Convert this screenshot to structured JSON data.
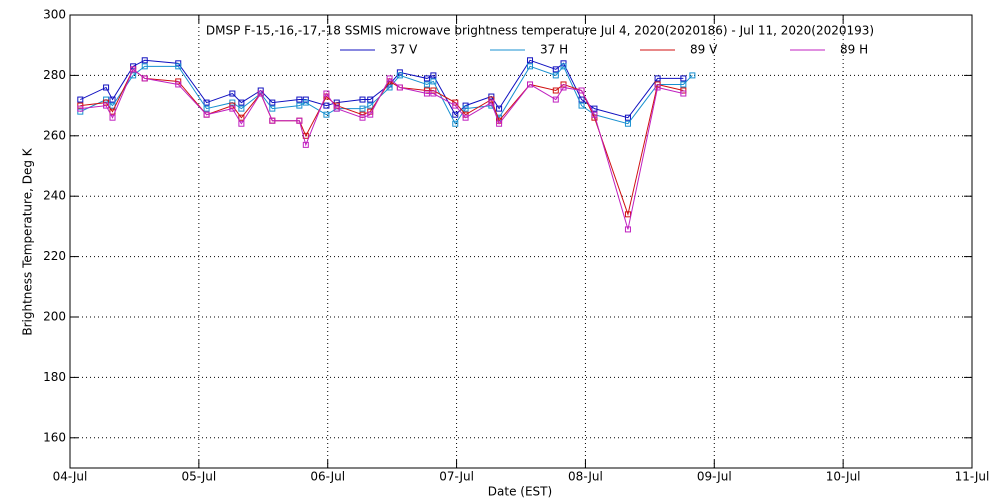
{
  "chart_data": {
    "type": "line",
    "title": "DMSP F-15,-16,-17,-18 SSMIS microwave brightness temperature Jul  4, 2020(2020186) - Jul 11, 2020(2020193)",
    "x_label": "Date (EST)",
    "y_label": "Brightness Temperature, Deg K",
    "x": [
      0.08,
      0.28,
      0.33,
      0.49,
      0.58,
      0.84,
      1.06,
      1.26,
      1.33,
      1.48,
      1.57,
      1.78,
      1.83,
      1.99,
      2.07,
      2.27,
      2.33,
      2.48,
      2.56,
      2.77,
      2.82,
      2.99,
      3.07,
      3.27,
      3.33,
      3.57,
      3.77,
      3.83,
      3.97,
      4.07,
      4.33,
      4.56,
      4.76,
      4.83
    ],
    "series": [
      {
        "name": "37 V",
        "color": "#1010c0",
        "values": [
          272,
          276,
          272,
          283,
          285,
          284,
          271,
          274,
          271,
          275,
          271,
          272,
          272,
          270,
          271,
          272,
          272,
          277,
          281,
          279,
          280,
          267,
          270,
          273,
          269,
          285,
          282,
          284,
          272,
          269,
          266,
          279,
          279,
          null
        ]
      },
      {
        "name": "37 H",
        "color": "#1890d0",
        "values": [
          268,
          272,
          270,
          280,
          283,
          283,
          269,
          271,
          269,
          274,
          269,
          270,
          271,
          267,
          269,
          269,
          270,
          276,
          280,
          277,
          278,
          264,
          269,
          270,
          266,
          283,
          280,
          283,
          270,
          267,
          264,
          277,
          277,
          280
        ]
      },
      {
        "name": "89 V",
        "color": "#d01010",
        "values": [
          270,
          271,
          268,
          282,
          279,
          278,
          267,
          270,
          266,
          274,
          265,
          265,
          260,
          273,
          270,
          267,
          268,
          278,
          276,
          275,
          275,
          271,
          267,
          272,
          265,
          277,
          275,
          277,
          275,
          266,
          234,
          277,
          275,
          null
        ]
      },
      {
        "name": "89 H",
        "color": "#c020c0",
        "values": [
          269,
          270,
          266,
          282,
          279,
          277,
          267,
          269,
          264,
          274,
          265,
          265,
          257,
          274,
          269,
          266,
          267,
          279,
          276,
          274,
          274,
          270,
          266,
          271,
          264,
          277,
          272,
          276,
          275,
          267,
          229,
          276,
          274,
          null
        ]
      }
    ],
    "xlim": [
      0,
      7
    ],
    "xticks": [
      {
        "value": 0,
        "label": "04-Jul"
      },
      {
        "value": 1,
        "label": "05-Jul"
      },
      {
        "value": 2,
        "label": "06-Jul"
      },
      {
        "value": 3,
        "label": "07-Jul"
      },
      {
        "value": 4,
        "label": "08-Jul"
      },
      {
        "value": 5,
        "label": "09-Jul"
      },
      {
        "value": 6,
        "label": "10-Jul"
      },
      {
        "value": 7,
        "label": "11-Jul"
      }
    ],
    "ylim": [
      150,
      300
    ],
    "yticks": [
      160,
      180,
      200,
      220,
      240,
      260,
      280,
      300
    ],
    "grid": true
  }
}
